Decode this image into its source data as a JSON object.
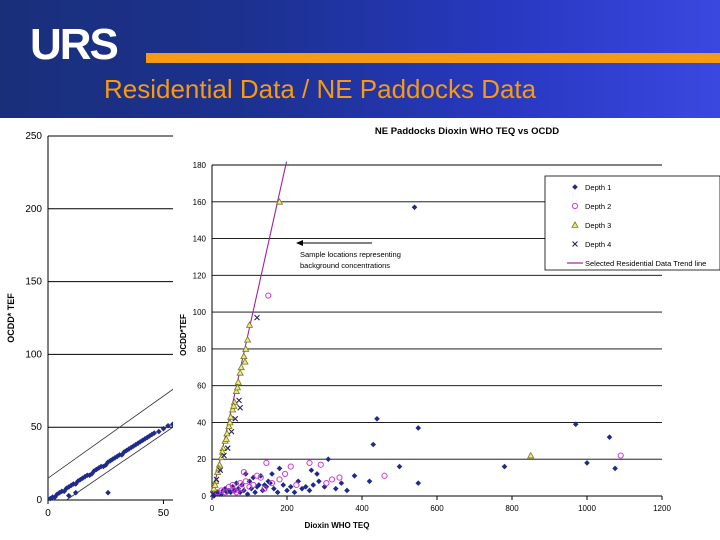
{
  "header": {
    "logo_text": "URS",
    "title": "Residential Data / NE Paddocks Data"
  },
  "colors": {
    "header_bg": "#1c3190",
    "accent_orange": "#f59a12",
    "depth1": "#1f2a8a",
    "depth2": "#d23cd6",
    "depth3": "#8a8a20",
    "depth4": "#222266",
    "trend_line": "#a020a0"
  },
  "chart_data": [
    {
      "type": "scatter",
      "title": "",
      "xlabel": "",
      "ylabel": "OCDD* TEF",
      "xlim": [
        0,
        55
      ],
      "ylim": [
        0,
        250
      ],
      "x_ticks": [
        "0",
        "50"
      ],
      "y_ticks": [
        "0",
        "50",
        "100",
        "150",
        "200",
        "250"
      ],
      "grid": true,
      "series": [
        {
          "name": "",
          "points": [
            [
              1,
              1
            ],
            [
              2,
              2
            ],
            [
              3,
              2
            ],
            [
              4,
              4
            ],
            [
              5,
              5
            ],
            [
              6,
              6
            ],
            [
              7,
              6
            ],
            [
              8,
              8
            ],
            [
              9,
              9
            ],
            [
              10,
              10
            ],
            [
              11,
              11
            ],
            [
              12,
              11
            ],
            [
              13,
              13
            ],
            [
              14,
              14
            ],
            [
              15,
              15
            ],
            [
              16,
              16
            ],
            [
              17,
              17
            ],
            [
              18,
              17
            ],
            [
              19,
              18
            ],
            [
              20,
              20
            ],
            [
              21,
              21
            ],
            [
              22,
              22
            ],
            [
              23,
              23
            ],
            [
              24,
              23
            ],
            [
              25,
              24
            ],
            [
              26,
              26
            ],
            [
              27,
              27
            ],
            [
              28,
              28
            ],
            [
              29,
              29
            ],
            [
              30,
              30
            ],
            [
              31,
              31
            ],
            [
              32,
              31
            ],
            [
              33,
              33
            ],
            [
              34,
              34
            ],
            [
              35,
              35
            ],
            [
              36,
              36
            ],
            [
              37,
              37
            ],
            [
              38,
              38
            ],
            [
              39,
              39
            ],
            [
              40,
              40
            ],
            [
              41,
              41
            ],
            [
              42,
              42
            ],
            [
              43,
              43
            ],
            [
              44,
              44
            ],
            [
              45,
              45
            ],
            [
              46,
              46
            ],
            [
              48,
              47
            ],
            [
              50,
              49
            ],
            [
              52,
              51
            ],
            [
              54,
              52
            ],
            [
              26,
              5
            ],
            [
              9,
              3
            ],
            [
              12,
              5
            ]
          ]
        }
      ],
      "lines": [
        {
          "name": "upper bound",
          "x": [
            0,
            55
          ],
          "y": [
            15,
            77
          ]
        },
        {
          "name": "lower bound",
          "x": [
            8,
            55
          ],
          "y": [
            0,
            51
          ]
        }
      ]
    },
    {
      "type": "scatter",
      "title": "NE Paddocks Dioxin WHO TEQ vs OCDD",
      "xlabel": "Dioxin WHO TEQ",
      "ylabel": "OCDD*TEF",
      "xlim": [
        0,
        1200
      ],
      "ylim": [
        0,
        180
      ],
      "x_ticks": [
        "0",
        "200",
        "400",
        "600",
        "800",
        "1000",
        "1200"
      ],
      "y_ticks": [
        "0",
        "20",
        "40",
        "60",
        "80",
        "100",
        "120",
        "140",
        "160",
        "180"
      ],
      "grid": true,
      "legend_position": "top-right",
      "annotation": "Sample locations representing background concentrations",
      "series": [
        {
          "name": "Depth 1",
          "points": [
            [
              540,
              157
            ],
            [
              440,
              42
            ],
            [
              550,
              37
            ],
            [
              970,
              39
            ],
            [
              1060,
              32
            ],
            [
              1000,
              18
            ],
            [
              1075,
              15
            ],
            [
              780,
              16
            ],
            [
              500,
              16
            ],
            [
              550,
              7
            ],
            [
              430,
              28
            ],
            [
              420,
              8
            ],
            [
              310,
              20
            ],
            [
              285,
              8
            ],
            [
              300,
              5
            ],
            [
              280,
              12
            ],
            [
              180,
              15
            ],
            [
              230,
              8
            ],
            [
              250,
              5
            ],
            [
              160,
              12
            ],
            [
              140,
              6
            ],
            [
              120,
              5
            ],
            [
              110,
              10
            ],
            [
              100,
              8
            ],
            [
              90,
              12
            ],
            [
              80,
              6
            ],
            [
              70,
              4
            ],
            [
              60,
              3
            ],
            [
              50,
              2
            ],
            [
              40,
              2
            ],
            [
              30,
              3
            ],
            [
              20,
              1
            ],
            [
              10,
              1
            ],
            [
              5,
              0
            ],
            [
              15,
              2
            ],
            [
              25,
              1
            ],
            [
              35,
              4
            ],
            [
              45,
              3
            ],
            [
              55,
              5
            ],
            [
              65,
              7
            ],
            [
              75,
              2
            ],
            [
              85,
              3
            ],
            [
              95,
              1
            ],
            [
              105,
              4
            ],
            [
              115,
              2
            ],
            [
              125,
              6
            ],
            [
              135,
              3
            ],
            [
              145,
              5
            ],
            [
              155,
              7
            ],
            [
              165,
              4
            ],
            [
              175,
              2
            ],
            [
              190,
              6
            ],
            [
              200,
              3
            ],
            [
              210,
              5
            ],
            [
              220,
              2
            ],
            [
              240,
              4
            ],
            [
              260,
              3
            ],
            [
              270,
              6
            ],
            [
              330,
              4
            ],
            [
              345,
              7
            ],
            [
              360,
              3
            ],
            [
              380,
              11
            ],
            [
              265,
              14
            ],
            [
              150,
              8
            ],
            [
              130,
              11
            ]
          ]
        },
        {
          "name": "Depth 2",
          "points": [
            [
              150,
              109
            ],
            [
              1090,
              22
            ],
            [
              460,
              11
            ],
            [
              340,
              10
            ],
            [
              320,
              9
            ],
            [
              290,
              17
            ],
            [
              260,
              18
            ],
            [
              210,
              16
            ],
            [
              180,
              9
            ],
            [
              160,
              7
            ],
            [
              120,
              11
            ],
            [
              100,
              5
            ],
            [
              80,
              4
            ],
            [
              60,
              3
            ],
            [
              55,
              6
            ],
            [
              45,
              5
            ],
            [
              35,
              2
            ],
            [
              25,
              3
            ],
            [
              15,
              2
            ],
            [
              65,
              2
            ],
            [
              75,
              7
            ],
            [
              90,
              8
            ],
            [
              110,
              6
            ],
            [
              130,
              10
            ],
            [
              140,
              4
            ],
            [
              195,
              12
            ],
            [
              225,
              6
            ],
            [
              305,
              7
            ],
            [
              145,
              18
            ],
            [
              85,
              13
            ]
          ]
        },
        {
          "name": "Depth 3",
          "points": [
            [
              180,
              160
            ],
            [
              100,
              93
            ],
            [
              95,
              85
            ],
            [
              90,
              80
            ],
            [
              85,
              76
            ],
            [
              75,
              67
            ],
            [
              70,
              62
            ],
            [
              65,
              57
            ],
            [
              60,
              51
            ],
            [
              55,
              47
            ],
            [
              50,
              43
            ],
            [
              45,
              38
            ],
            [
              40,
              34
            ],
            [
              35,
              30
            ],
            [
              30,
              26
            ],
            [
              25,
              21
            ],
            [
              20,
              17
            ],
            [
              15,
              13
            ],
            [
              10,
              8
            ],
            [
              5,
              4
            ],
            [
              850,
              22
            ],
            [
              88,
              73
            ],
            [
              78,
              70
            ],
            [
              68,
              59
            ],
            [
              58,
              49
            ],
            [
              48,
              40
            ],
            [
              38,
              31
            ],
            [
              28,
              24
            ],
            [
              18,
              15
            ],
            [
              8,
              6
            ]
          ]
        },
        {
          "name": "Depth 4",
          "points": [
            [
              120,
              97
            ],
            [
              75,
              48
            ],
            [
              72,
              52
            ],
            [
              62,
              42
            ],
            [
              52,
              35
            ],
            [
              42,
              26
            ],
            [
              32,
              22
            ],
            [
              22,
              14
            ],
            [
              12,
              9
            ],
            [
              2,
              1
            ]
          ]
        }
      ],
      "trend_line": {
        "name": "Selected Residential Data Trend line",
        "x": [
          0,
          200
        ],
        "y": [
          0,
          184
        ]
      }
    }
  ]
}
